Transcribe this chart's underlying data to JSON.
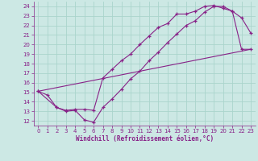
{
  "xlabel": "Windchill (Refroidissement éolien,°C)",
  "bg_color": "#cce8e4",
  "line_color": "#882288",
  "grid_color": "#aad4cc",
  "xlim": [
    -0.5,
    23.5
  ],
  "ylim": [
    11.5,
    24.5
  ],
  "xticks": [
    0,
    1,
    2,
    3,
    4,
    5,
    6,
    7,
    8,
    9,
    10,
    11,
    12,
    13,
    14,
    15,
    16,
    17,
    18,
    19,
    20,
    21,
    22,
    23
  ],
  "yticks": [
    12,
    13,
    14,
    15,
    16,
    17,
    18,
    19,
    20,
    21,
    22,
    23,
    24
  ],
  "line1_x": [
    0,
    1,
    2,
    3,
    4,
    5,
    6,
    7,
    8,
    9,
    10,
    11,
    12,
    13,
    14,
    15,
    16,
    17,
    18,
    19,
    20,
    21,
    22,
    23
  ],
  "line1_y": [
    15.1,
    14.7,
    13.4,
    13.0,
    13.1,
    12.1,
    11.85,
    13.4,
    14.3,
    15.3,
    16.4,
    17.2,
    18.3,
    19.2,
    20.2,
    21.1,
    22.0,
    22.5,
    23.4,
    24.0,
    24.0,
    23.5,
    22.8,
    21.2
  ],
  "line2_x": [
    0,
    2,
    3,
    4,
    5,
    6,
    7,
    8,
    9,
    10,
    11,
    12,
    13,
    14,
    15,
    16,
    17,
    18,
    19,
    20,
    21,
    22,
    23
  ],
  "line2_y": [
    15.1,
    13.4,
    13.1,
    13.2,
    13.2,
    13.1,
    16.5,
    17.4,
    18.3,
    19.0,
    20.0,
    20.9,
    21.8,
    22.2,
    23.2,
    23.2,
    23.5,
    24.0,
    24.1,
    23.8,
    23.5,
    19.5,
    19.5
  ],
  "line3_x": [
    0,
    23
  ],
  "line3_y": [
    15.1,
    19.5
  ]
}
